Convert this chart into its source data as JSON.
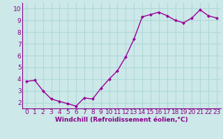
{
  "x": [
    0,
    1,
    2,
    3,
    4,
    5,
    6,
    7,
    8,
    9,
    10,
    11,
    12,
    13,
    14,
    15,
    16,
    17,
    18,
    19,
    20,
    21,
    22,
    23
  ],
  "y": [
    3.8,
    3.9,
    3.0,
    2.3,
    2.1,
    1.9,
    1.7,
    2.4,
    2.3,
    3.2,
    4.0,
    4.7,
    5.9,
    7.4,
    9.3,
    9.5,
    9.7,
    9.4,
    9.0,
    8.8,
    9.2,
    9.9,
    9.4,
    9.2
  ],
  "line_color": "#990099",
  "marker": "D",
  "marker_size": 2.0,
  "line_width": 1.0,
  "xlabel": "Windchill (Refroidissement éolien,°C)",
  "xlim": [
    -0.5,
    23.5
  ],
  "ylim": [
    1.5,
    10.5
  ],
  "yticks": [
    2,
    3,
    4,
    5,
    6,
    7,
    8,
    9,
    10
  ],
  "xticks": [
    0,
    1,
    2,
    3,
    4,
    5,
    6,
    7,
    8,
    9,
    10,
    11,
    12,
    13,
    14,
    15,
    16,
    17,
    18,
    19,
    20,
    21,
    22,
    23
  ],
  "background_color": "#cce8e8",
  "grid_color": "#b0d8d8",
  "tick_label_color": "#880088",
  "axis_label_color": "#880088",
  "xlabel_fontsize": 6.5,
  "tick_fontsize": 6.5,
  "spine_color": "#880088"
}
